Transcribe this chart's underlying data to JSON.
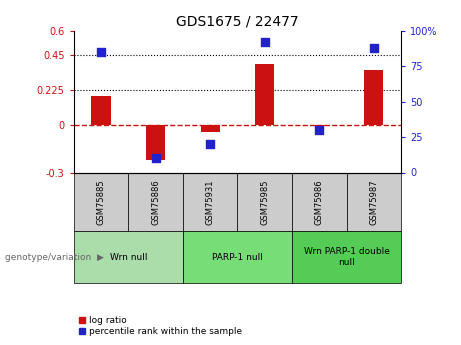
{
  "title": "GDS1675 / 22477",
  "samples": [
    "GSM75885",
    "GSM75886",
    "GSM75931",
    "GSM75985",
    "GSM75986",
    "GSM75987"
  ],
  "log_ratios": [
    0.185,
    -0.22,
    -0.04,
    0.39,
    -0.005,
    0.35
  ],
  "percentile_ranks": [
    85,
    10,
    20,
    92,
    30,
    88
  ],
  "percentile_scale": 100,
  "left_ylim": [
    -0.3,
    0.6
  ],
  "left_yticks": [
    -0.3,
    0,
    0.225,
    0.45,
    0.6
  ],
  "left_ytick_labels": [
    "-0.3",
    "0",
    "0.225",
    "0.45",
    "0.6"
  ],
  "right_yticks": [
    0,
    25,
    50,
    75,
    100
  ],
  "right_ytick_labels": [
    "0",
    "25",
    "50",
    "75",
    "100%"
  ],
  "hlines": [
    0.225,
    0.45
  ],
  "bar_color": "#CC1111",
  "dot_color": "#2222CC",
  "zero_line_color": "#CC1111",
  "zero_line_style": "--",
  "hline_style": ":",
  "hline_color": "black",
  "groups": [
    {
      "label": "Wrn null",
      "indices": [
        0,
        1
      ],
      "color": "#AADDAA"
    },
    {
      "label": "PARP-1 null",
      "indices": [
        2,
        3
      ],
      "color": "#77DD77"
    },
    {
      "label": "Wrn PARP-1 double\nnull",
      "indices": [
        4,
        5
      ],
      "color": "#55CC55"
    }
  ],
  "genotype_label": "genotype/variation",
  "legend_items": [
    {
      "label": "log ratio",
      "color": "#CC1111"
    },
    {
      "label": "percentile rank within the sample",
      "color": "#2222CC"
    }
  ],
  "bar_width": 0.35,
  "dot_size": 30,
  "title_fontsize": 10,
  "tick_fontsize": 7,
  "label_fontsize": 7,
  "sample_cell_color": "#CCCCCC",
  "spine_color": "#000000"
}
